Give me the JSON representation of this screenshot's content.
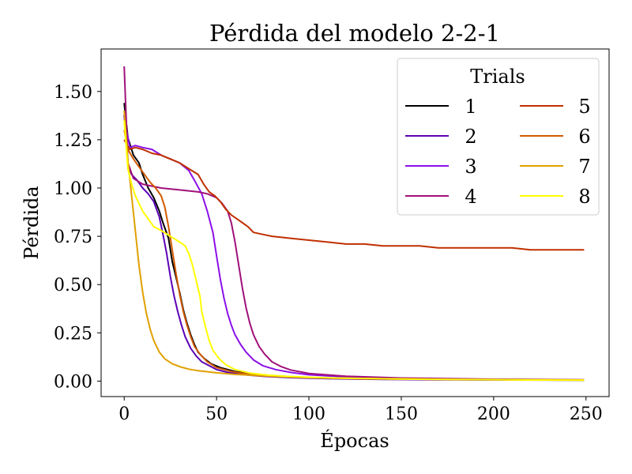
{
  "chart_data": {
    "type": "line",
    "title": "Pérdida del modelo 2-2-1",
    "xlabel": "Épocas",
    "ylabel": "Pérdida",
    "xlim": [
      -12.5,
      262.5
    ],
    "ylim": [
      -0.08,
      1.72
    ],
    "xticks": [
      0,
      50,
      100,
      150,
      200,
      250
    ],
    "xtick_labels": [
      "0",
      "50",
      "100",
      "150",
      "200",
      "250"
    ],
    "yticks": [
      0.0,
      0.25,
      0.5,
      0.75,
      1.0,
      1.25,
      1.5
    ],
    "ytick_labels": [
      "0.00",
      "0.25",
      "0.50",
      "0.75",
      "1.00",
      "1.25",
      "1.50"
    ],
    "grid": false,
    "legend": {
      "title": "Trials",
      "placement": "top-right",
      "columns": 2
    },
    "series": [
      {
        "name": "1",
        "color": "#000000",
        "x": [
          0,
          2,
          5,
          8,
          10,
          13,
          16,
          19,
          21,
          24,
          26,
          28,
          30,
          32,
          34,
          36,
          38,
          40,
          43,
          47,
          52,
          60,
          70,
          80,
          100,
          130,
          160,
          200,
          249
        ],
        "y": [
          1.44,
          1.26,
          1.17,
          1.13,
          1.07,
          1.0,
          0.95,
          0.88,
          0.82,
          0.74,
          0.62,
          0.54,
          0.46,
          0.37,
          0.3,
          0.24,
          0.19,
          0.15,
          0.12,
          0.09,
          0.07,
          0.05,
          0.035,
          0.025,
          0.018,
          0.012,
          0.009,
          0.007,
          0.005
        ]
      },
      {
        "name": "2",
        "color": "#5b02b6",
        "x": [
          0,
          2,
          4,
          7,
          10,
          13,
          16,
          19,
          21,
          23,
          25,
          27,
          29,
          31,
          33,
          36,
          39,
          42,
          46,
          50,
          56,
          65,
          75,
          90,
          110,
          140,
          170,
          210,
          249
        ],
        "y": [
          1.38,
          1.12,
          1.07,
          1.04,
          1.0,
          0.97,
          0.93,
          0.85,
          0.76,
          0.66,
          0.54,
          0.44,
          0.36,
          0.29,
          0.23,
          0.17,
          0.13,
          0.1,
          0.08,
          0.06,
          0.045,
          0.033,
          0.025,
          0.018,
          0.013,
          0.009,
          0.007,
          0.006,
          0.005
        ]
      },
      {
        "name": "3",
        "color": "#8b10e8",
        "x": [
          0,
          3,
          6,
          10,
          15,
          20,
          25,
          30,
          35,
          38,
          42,
          45,
          48,
          50,
          52,
          54,
          56,
          58,
          60,
          63,
          66,
          70,
          75,
          82,
          90,
          100,
          120,
          150,
          200,
          249
        ],
        "y": [
          1.37,
          1.21,
          1.22,
          1.21,
          1.2,
          1.17,
          1.15,
          1.13,
          1.09,
          1.04,
          0.97,
          0.88,
          0.77,
          0.65,
          0.53,
          0.43,
          0.35,
          0.29,
          0.24,
          0.19,
          0.15,
          0.11,
          0.08,
          0.06,
          0.045,
          0.033,
          0.022,
          0.014,
          0.009,
          0.006
        ]
      },
      {
        "name": "4",
        "color": "#a0117a",
        "x": [
          0,
          2,
          5,
          10,
          15,
          20,
          30,
          40,
          45,
          50,
          53,
          56,
          58,
          60,
          62,
          64,
          66,
          68,
          70,
          73,
          76,
          80,
          85,
          90,
          100,
          120,
          150,
          200,
          249
        ],
        "y": [
          1.63,
          1.13,
          1.05,
          1.02,
          1.01,
          1.0,
          0.99,
          0.98,
          0.97,
          0.95,
          0.92,
          0.88,
          0.82,
          0.72,
          0.6,
          0.48,
          0.38,
          0.3,
          0.24,
          0.18,
          0.14,
          0.1,
          0.075,
          0.058,
          0.04,
          0.025,
          0.016,
          0.01,
          0.007
        ]
      },
      {
        "name": "5",
        "color": "#c03000",
        "x": [
          0,
          3,
          6,
          10,
          15,
          20,
          25,
          30,
          35,
          40,
          43,
          46,
          49,
          52,
          55,
          58,
          61,
          64,
          67,
          70,
          75,
          80,
          90,
          100,
          110,
          120,
          130,
          140,
          150,
          160,
          170,
          180,
          190,
          200,
          210,
          220,
          230,
          240,
          249
        ],
        "y": [
          1.25,
          1.2,
          1.21,
          1.2,
          1.18,
          1.17,
          1.15,
          1.13,
          1.1,
          1.07,
          1.02,
          0.98,
          0.96,
          0.93,
          0.89,
          0.86,
          0.84,
          0.82,
          0.8,
          0.77,
          0.76,
          0.75,
          0.74,
          0.73,
          0.72,
          0.71,
          0.71,
          0.7,
          0.7,
          0.7,
          0.69,
          0.69,
          0.69,
          0.69,
          0.69,
          0.68,
          0.68,
          0.68,
          0.68
        ]
      },
      {
        "name": "6",
        "color": "#d15a00",
        "x": [
          0,
          2,
          5,
          8,
          11,
          14,
          17,
          20,
          22,
          24,
          26,
          28,
          30,
          32,
          34,
          36,
          38,
          41,
          45,
          50,
          58,
          68,
          80,
          100,
          130,
          170,
          210,
          249
        ],
        "y": [
          1.3,
          1.2,
          1.15,
          1.11,
          1.07,
          1.03,
          1.0,
          0.96,
          0.9,
          0.8,
          0.68,
          0.56,
          0.45,
          0.36,
          0.29,
          0.23,
          0.18,
          0.14,
          0.1,
          0.07,
          0.05,
          0.035,
          0.025,
          0.018,
          0.012,
          0.009,
          0.007,
          0.006
        ]
      },
      {
        "name": "7",
        "color": "#e0a000",
        "x": [
          0,
          2,
          4,
          6,
          8,
          10,
          12,
          14,
          16,
          19,
          22,
          26,
          30,
          35,
          40,
          50,
          60,
          75,
          90,
          110,
          140,
          180,
          220,
          249
        ],
        "y": [
          1.4,
          1.14,
          0.96,
          0.78,
          0.6,
          0.46,
          0.35,
          0.27,
          0.21,
          0.15,
          0.115,
          0.09,
          0.075,
          0.062,
          0.054,
          0.043,
          0.035,
          0.027,
          0.021,
          0.016,
          0.012,
          0.009,
          0.007,
          0.006
        ]
      },
      {
        "name": "8",
        "color": "#ffff00",
        "x": [
          0,
          2,
          4,
          6,
          8,
          10,
          13,
          16,
          20,
          25,
          30,
          33,
          35,
          37,
          39,
          41,
          42,
          44,
          46,
          48,
          51,
          55,
          60,
          68,
          78,
          90,
          110,
          140,
          180,
          220,
          249
        ],
        "y": [
          1.35,
          1.1,
          1.02,
          0.96,
          0.92,
          0.88,
          0.84,
          0.8,
          0.78,
          0.75,
          0.72,
          0.7,
          0.66,
          0.6,
          0.52,
          0.44,
          0.36,
          0.28,
          0.21,
          0.16,
          0.12,
          0.085,
          0.06,
          0.042,
          0.031,
          0.024,
          0.017,
          0.012,
          0.008,
          0.006,
          0.005
        ]
      }
    ]
  }
}
